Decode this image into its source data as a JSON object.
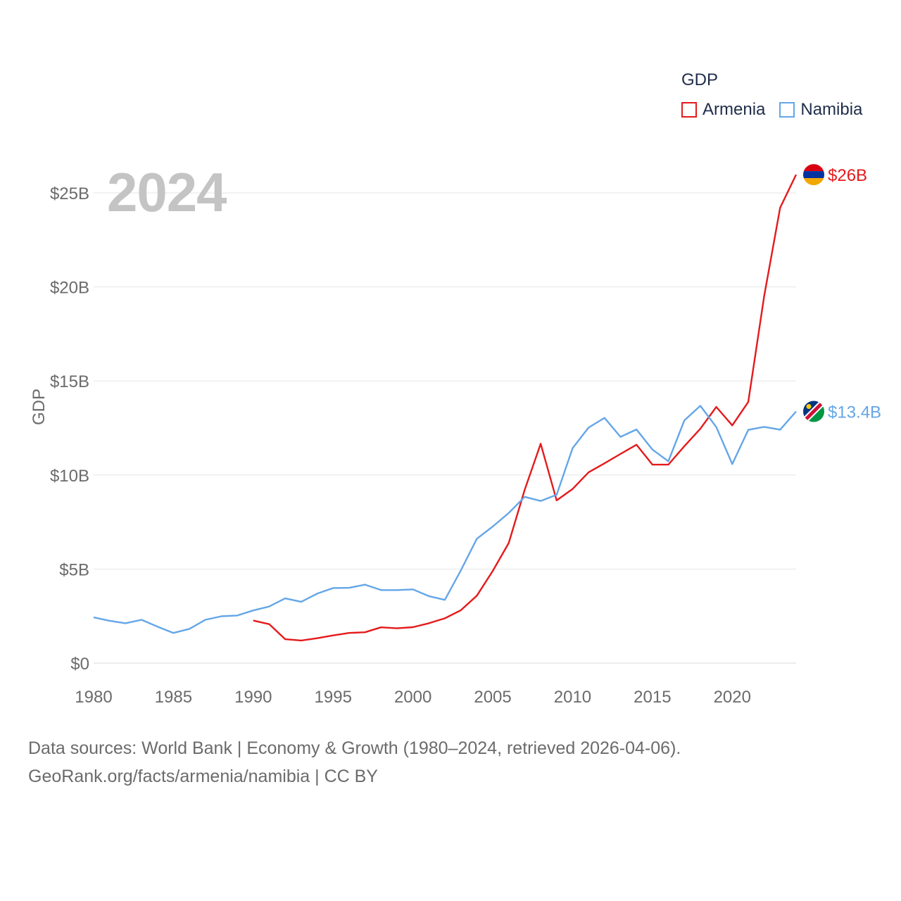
{
  "legend": {
    "title": "GDP",
    "items": [
      {
        "label": "Armenia",
        "color": "#e41a1c"
      },
      {
        "label": "Namibia",
        "color": "#64a6e8"
      }
    ]
  },
  "current_year": "2024",
  "footer": {
    "line1": "Data sources: World Bank | Economy & Growth (1980–2024, retrieved 2026-04-06).",
    "line2": "GeoRank.org/facts/armenia/namibia | CC BY"
  },
  "chart_data": {
    "type": "line",
    "title": "",
    "xlabel": "",
    "ylabel": "GDP",
    "xlim": [
      1980,
      2024
    ],
    "ylim": [
      0,
      28.5
    ],
    "x_ticks": [
      1980,
      1985,
      1990,
      1995,
      2000,
      2005,
      2010,
      2015,
      2020
    ],
    "y_ticks": [
      {
        "value": 0,
        "label": "$0"
      },
      {
        "value": 5,
        "label": "$5B"
      },
      {
        "value": 10,
        "label": "$10B"
      },
      {
        "value": 15,
        "label": "$15B"
      },
      {
        "value": 20,
        "label": "$20B"
      },
      {
        "value": 25,
        "label": "$25B"
      }
    ],
    "grid": true,
    "series": [
      {
        "name": "Armenia",
        "color": "#e41a1c",
        "end_label": "$26B",
        "flag": [
          "#d90012",
          "#0033a0",
          "#f2a800"
        ],
        "x": [
          1990,
          1991,
          1992,
          1993,
          1994,
          1995,
          1996,
          1997,
          1998,
          1999,
          2000,
          2001,
          2002,
          2003,
          2004,
          2005,
          2006,
          2007,
          2008,
          2009,
          2010,
          2011,
          2012,
          2013,
          2014,
          2015,
          2016,
          2017,
          2018,
          2019,
          2020,
          2021,
          2022,
          2023,
          2024
        ],
        "values": [
          2.26,
          2.07,
          1.27,
          1.2,
          1.32,
          1.47,
          1.6,
          1.64,
          1.9,
          1.85,
          1.91,
          2.12,
          2.38,
          2.81,
          3.58,
          4.9,
          6.38,
          9.21,
          11.66,
          8.65,
          9.26,
          10.14,
          10.62,
          11.12,
          11.61,
          10.55,
          10.55,
          11.53,
          12.46,
          13.62,
          12.64,
          13.88,
          19.51,
          24.21,
          25.97
        ]
      },
      {
        "name": "Namibia",
        "color": "#64a6e8",
        "end_label": "$13.4B",
        "flag": [
          "#003580",
          "#d21034",
          "#009543",
          "#ffce00"
        ],
        "x": [
          1980,
          1981,
          1982,
          1983,
          1984,
          1985,
          1986,
          1987,
          1988,
          1989,
          1990,
          1991,
          1992,
          1993,
          1994,
          1995,
          1996,
          1997,
          1998,
          1999,
          2000,
          2001,
          2002,
          2003,
          2004,
          2005,
          2006,
          2007,
          2008,
          2009,
          2010,
          2011,
          2012,
          2013,
          2014,
          2015,
          2016,
          2017,
          2018,
          2019,
          2020,
          2021,
          2022,
          2023,
          2024
        ],
        "values": [
          2.43,
          2.25,
          2.12,
          2.3,
          1.94,
          1.6,
          1.82,
          2.3,
          2.49,
          2.53,
          2.8,
          3.01,
          3.44,
          3.26,
          3.69,
          3.99,
          4.0,
          4.17,
          3.88,
          3.88,
          3.92,
          3.56,
          3.36,
          4.93,
          6.61,
          7.26,
          7.98,
          8.84,
          8.62,
          8.95,
          11.43,
          12.52,
          13.04,
          12.03,
          12.42,
          11.35,
          10.73,
          12.9,
          13.68,
          12.55,
          10.58,
          12.4,
          12.56,
          12.41,
          13.38
        ]
      }
    ]
  }
}
